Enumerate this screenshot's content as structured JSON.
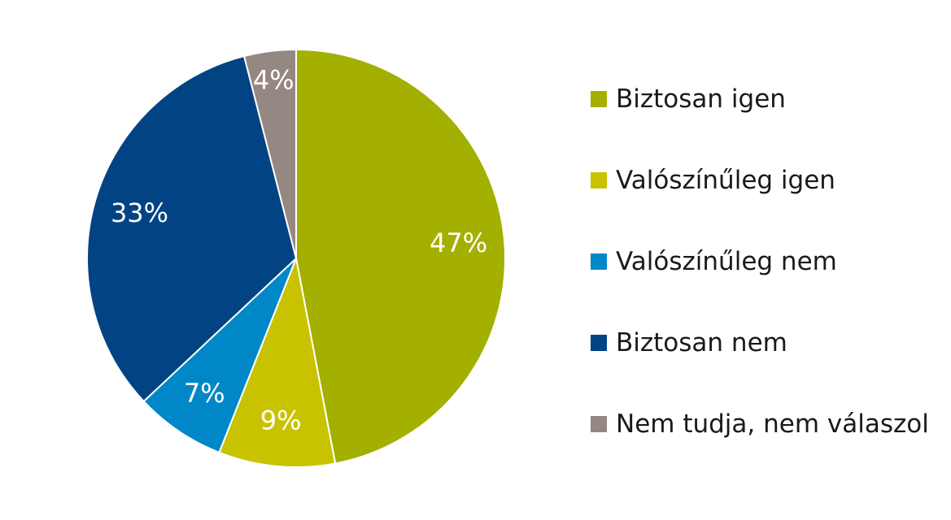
{
  "chart_data": {
    "type": "pie",
    "start_angle": "12 o'clock",
    "direction": "clockwise",
    "legend_position": "right",
    "slices": [
      {
        "name": "Biztosan igen",
        "value": 47,
        "label": "47%",
        "color": "#a3b000"
      },
      {
        "name": "Valószínűleg igen",
        "value": 9,
        "label": "9%",
        "color": "#c9c200"
      },
      {
        "name": "Valószínűleg nem",
        "value": 7,
        "label": "7%",
        "color": "#0087c7"
      },
      {
        "name": "Biztosan nem",
        "value": 33,
        "label": "33%",
        "color": "#024384"
      },
      {
        "name": "Nem tudja, nem válaszol",
        "value": 4,
        "label": "4%",
        "color": "#958781"
      }
    ]
  }
}
